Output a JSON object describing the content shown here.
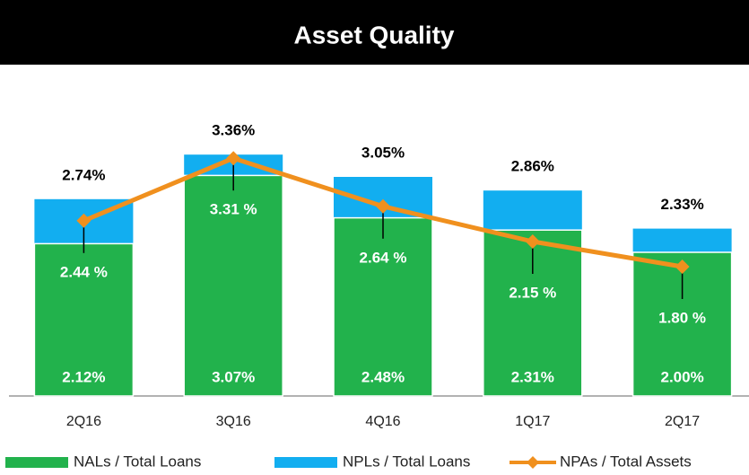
{
  "chart_data": {
    "type": "bar",
    "title": "Asset Quality",
    "categories": [
      "2Q16",
      "3Q16",
      "4Q16",
      "1Q17",
      "2Q17"
    ],
    "series": [
      {
        "name": "NPLs / Total Loans",
        "color": "#12aef0",
        "type": "bar",
        "values": [
          2.74,
          3.36,
          3.05,
          2.86,
          2.33
        ],
        "value_labels": [
          "2.74%",
          "3.36%",
          "3.05%",
          "2.86%",
          "2.33%"
        ]
      },
      {
        "name": "NALs / Total Loans",
        "color": "#22b24c",
        "type": "bar",
        "values": [
          2.12,
          3.07,
          2.48,
          2.31,
          2.0
        ],
        "value_labels": [
          "2.12%",
          "3.07%",
          "2.48%",
          "2.31%",
          "2.00%"
        ]
      },
      {
        "name": "NPAs / Total Assets",
        "color": "#f0901e",
        "type": "line",
        "values": [
          2.44,
          3.31,
          2.64,
          2.15,
          1.8
        ],
        "value_labels": [
          "2.44 %",
          "3.31 %",
          "2.64 %",
          "2.15 %",
          "1.80 %"
        ]
      }
    ],
    "legend": "bottom"
  }
}
